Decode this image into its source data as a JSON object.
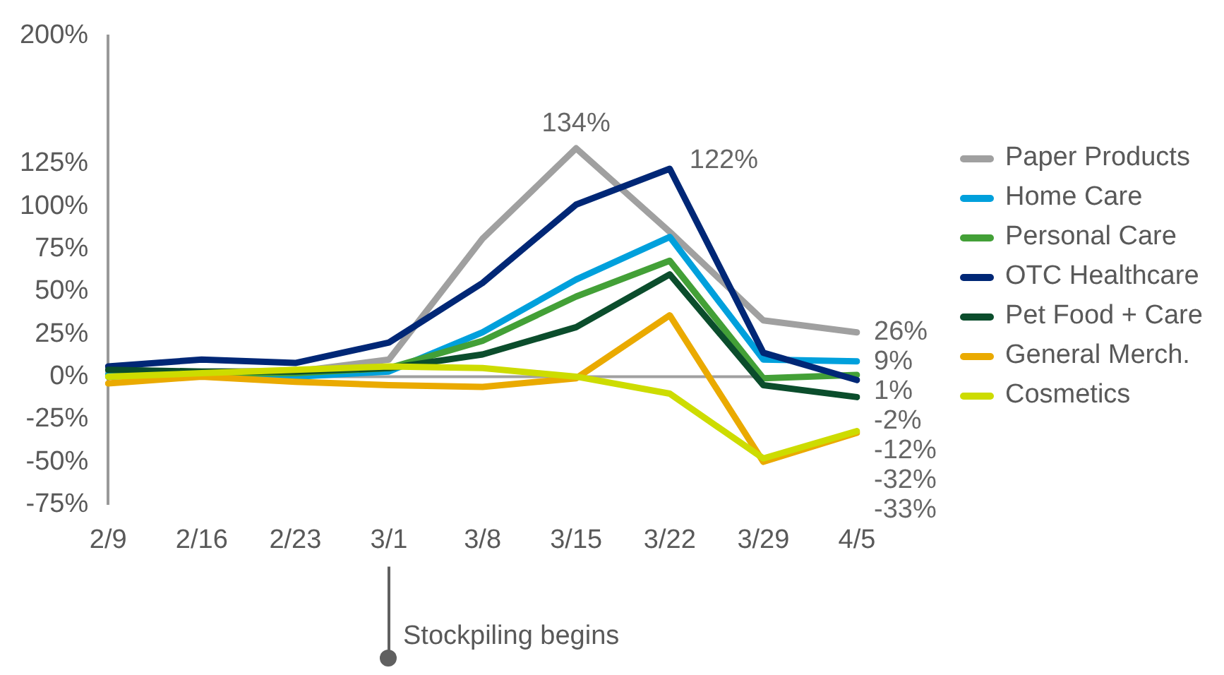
{
  "chart_data": {
    "type": "line",
    "categories": [
      "2/9",
      "2/16",
      "2/23",
      "3/1",
      "3/8",
      "3/15",
      "3/22",
      "3/29",
      "4/5"
    ],
    "series": [
      {
        "name": "Paper Products",
        "color": "#a0a0a0",
        "values": [
          2,
          3,
          3,
          10,
          81,
          134,
          85,
          33,
          26
        ],
        "value_labels": [
          null,
          null,
          null,
          null,
          null,
          "134%",
          null,
          null,
          "26%"
        ]
      },
      {
        "name": "Home Care",
        "color": "#00a0dc",
        "values": [
          1,
          2,
          0,
          3,
          26,
          57,
          82,
          10,
          9
        ],
        "value_labels": [
          null,
          null,
          null,
          null,
          null,
          null,
          null,
          null,
          "9%"
        ]
      },
      {
        "name": "Personal Care",
        "color": "#43a037",
        "values": [
          0,
          2,
          2,
          5,
          21,
          47,
          68,
          -1,
          1
        ],
        "value_labels": [
          null,
          null,
          null,
          null,
          null,
          null,
          null,
          null,
          "1%"
        ]
      },
      {
        "name": "OTC Healthcare",
        "color": "#002776",
        "values": [
          6,
          10,
          8,
          20,
          55,
          101,
          122,
          14,
          -2
        ],
        "value_labels": [
          null,
          null,
          null,
          null,
          null,
          null,
          "122%",
          null,
          "-2%"
        ]
      },
      {
        "name": "Pet Food + Care",
        "color": "#0b4d2c",
        "values": [
          4,
          3,
          3,
          5,
          13,
          29,
          60,
          -5,
          -12
        ],
        "value_labels": [
          null,
          null,
          null,
          null,
          null,
          null,
          null,
          null,
          "-12%"
        ]
      },
      {
        "name": "General Merch.",
        "color": "#eaaa00",
        "values": [
          -4,
          0,
          -3,
          -5,
          -6,
          -1,
          36,
          -50,
          -33
        ],
        "value_labels": [
          null,
          null,
          null,
          null,
          null,
          null,
          null,
          null,
          "-33%"
        ]
      },
      {
        "name": "Cosmetics",
        "color": "#cddc00",
        "values": [
          0,
          2,
          4,
          6,
          5,
          0,
          -10,
          -48,
          -32
        ],
        "value_labels": [
          null,
          null,
          null,
          null,
          null,
          null,
          null,
          null,
          "-32%"
        ]
      }
    ],
    "ylim": [
      -75,
      200
    ],
    "yticks": [
      {
        "value": -75,
        "label": "-75%"
      },
      {
        "value": -50,
        "label": "-50%"
      },
      {
        "value": -25,
        "label": "-25%"
      },
      {
        "value": 0,
        "label": "0%"
      },
      {
        "value": 25,
        "label": "25%"
      },
      {
        "value": 50,
        "label": "50%"
      },
      {
        "value": 75,
        "label": "75%"
      },
      {
        "value": 100,
        "label": "100%"
      },
      {
        "value": 125,
        "label": "125%"
      },
      {
        "value": 200,
        "label": "200%"
      }
    ],
    "ref_lines": [
      {
        "axis": "y",
        "value": 0,
        "label": null,
        "color": "#a0a0a0"
      },
      {
        "axis": "x",
        "value": "3/1",
        "label": "Stockpiling begins",
        "color": "#606060"
      }
    ],
    "grid": false,
    "legend": "right",
    "marker": "none",
    "line_style": "solid"
  }
}
